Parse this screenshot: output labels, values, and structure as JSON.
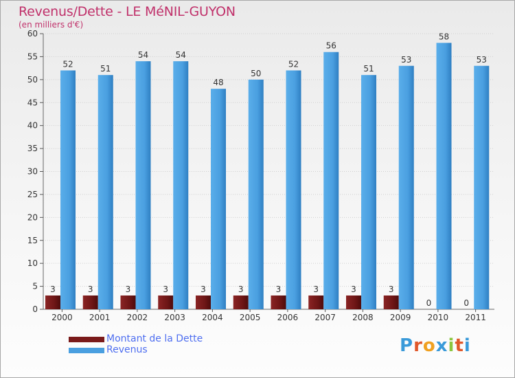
{
  "title": "Revenus/Dette - LE MéNIL-GUYON",
  "subtitle": "(en milliers d'€)",
  "brand": "Proxiti",
  "colors": {
    "title": "#c0306a",
    "axis_text": "#333333",
    "grid": "#cfcfcf",
    "legend_text": "#4e6ef0",
    "debt": "#7a1a1a",
    "revenue": "#4a9fe0"
  },
  "legend": [
    {
      "label": "Montant de la Dette",
      "color": "#7a1a1a"
    },
    {
      "label": "Revenus",
      "color": "#4a9fe0"
    }
  ],
  "chart_data": {
    "type": "bar",
    "title": "Revenus/Dette - LE MéNIL-GUYON",
    "subtitle": "(en milliers d'€)",
    "xlabel": "",
    "ylabel": "",
    "ylim": [
      0,
      60
    ],
    "yticks": [
      0,
      5,
      10,
      15,
      20,
      25,
      30,
      35,
      40,
      45,
      50,
      55,
      60
    ],
    "grid": true,
    "legend_position": "bottom-left",
    "categories": [
      "2000",
      "2001",
      "2002",
      "2003",
      "2004",
      "2005",
      "2006",
      "2007",
      "2008",
      "2009",
      "2010",
      "2011"
    ],
    "series": [
      {
        "name": "Montant de la Dette",
        "values": [
          3,
          3,
          3,
          3,
          3,
          3,
          3,
          3,
          3,
          3,
          0,
          0
        ]
      },
      {
        "name": "Revenus",
        "values": [
          52,
          51,
          54,
          54,
          48,
          50,
          52,
          56,
          51,
          53,
          58,
          53
        ]
      }
    ]
  }
}
